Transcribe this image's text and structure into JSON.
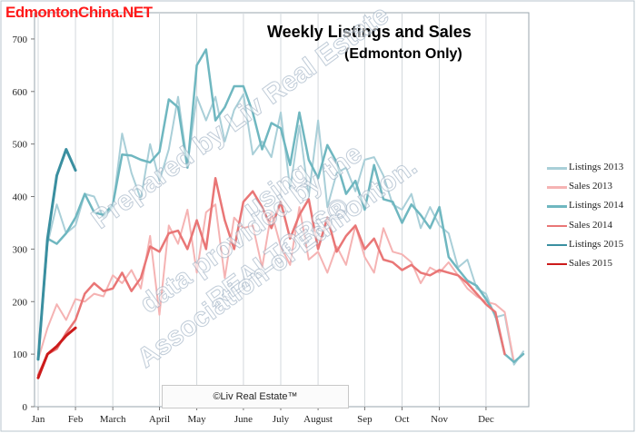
{
  "watermark_site": "EdmontonChina.NET",
  "watermark_lines": [
    "Prepared by Liv Real Estate",
    "using",
    "data provided by the",
    "REALTORS®",
    "Association of Edmonton."
  ],
  "copyright": "©Liv Real Estate™",
  "chart_data": {
    "type": "line",
    "title": "Weekly Listings and Sales",
    "subtitle": "(Edmonton Only)",
    "xlabel": "",
    "ylabel": "",
    "ylim": [
      0,
      750
    ],
    "yticks": [
      0,
      100,
      200,
      300,
      400,
      500,
      600,
      700
    ],
    "x_unit": "week of year",
    "xlim": [
      1,
      53
    ],
    "xticks": [
      {
        "label": "Jan",
        "week": 1
      },
      {
        "label": "Feb",
        "week": 5
      },
      {
        "label": "March",
        "week": 9
      },
      {
        "label": "April",
        "week": 14
      },
      {
        "label": "May",
        "week": 18
      },
      {
        "label": "June",
        "week": 23
      },
      {
        "label": "July",
        "week": 27
      },
      {
        "label": "August",
        "week": 31
      },
      {
        "label": "Sep",
        "week": 36
      },
      {
        "label": "Oct",
        "week": 40
      },
      {
        "label": "Nov",
        "week": 44
      },
      {
        "label": "Dec",
        "week": 49
      }
    ],
    "grid": "vertical",
    "legend_position": "right",
    "series": [
      {
        "name": "Listings 2013",
        "color": "#a9cfd8",
        "width": 2,
        "values": [
          95,
          310,
          385,
          330,
          345,
          405,
          400,
          360,
          380,
          520,
          445,
          395,
          500,
          430,
          490,
          590,
          460,
          590,
          545,
          590,
          505,
          565,
          595,
          480,
          505,
          475,
          560,
          415,
          535,
          400,
          545,
          380,
          445,
          455,
          410,
          470,
          475,
          440,
          385,
          375,
          405,
          340,
          380,
          345,
          330,
          265,
          280,
          225,
          215,
          170,
          175,
          80,
          105
        ]
      },
      {
        "name": "Sales 2013",
        "color": "#f5b3b3",
        "width": 2,
        "values": [
          90,
          150,
          195,
          165,
          205,
          200,
          215,
          210,
          250,
          235,
          260,
          225,
          325,
          175,
          345,
          310,
          375,
          255,
          370,
          385,
          245,
          360,
          340,
          345,
          265,
          370,
          305,
          270,
          380,
          280,
          295,
          255,
          305,
          270,
          345,
          285,
          255,
          340,
          295,
          290,
          275,
          235,
          265,
          255,
          275,
          250,
          225,
          210,
          200,
          195,
          180,
          85,
          100
        ]
      },
      {
        "name": "Listings 2014",
        "color": "#6fb7c0",
        "width": 2.5,
        "values": [
          90,
          320,
          310,
          330,
          360,
          405,
          370,
          365,
          385,
          480,
          478,
          470,
          465,
          485,
          585,
          570,
          455,
          650,
          680,
          545,
          570,
          610,
          610,
          560,
          490,
          540,
          530,
          460,
          560,
          470,
          435,
          498,
          465,
          405,
          430,
          375,
          460,
          395,
          390,
          350,
          385,
          365,
          340,
          380,
          285,
          262,
          240,
          230,
          205,
          175,
          100,
          85,
          100
        ]
      },
      {
        "name": "Sales 2014",
        "color": "#e97676",
        "width": 2.5,
        "values": [
          60,
          100,
          110,
          140,
          165,
          215,
          235,
          220,
          225,
          255,
          220,
          245,
          305,
          295,
          330,
          335,
          300,
          355,
          300,
          435,
          355,
          300,
          390,
          410,
          380,
          340,
          390,
          320,
          365,
          395,
          300,
          360,
          295,
          325,
          345,
          300,
          320,
          280,
          275,
          260,
          270,
          255,
          250,
          260,
          255,
          250,
          235,
          215,
          195,
          180,
          100
        ]
      },
      {
        "name": "Listings 2015",
        "color": "#3a8fa0",
        "width": 3,
        "values": [
          90,
          320,
          440,
          490,
          450
        ]
      },
      {
        "name": "Sales 2015",
        "color": "#cc1b1b",
        "width": 3,
        "values": [
          55,
          100,
          115,
          135,
          150
        ]
      }
    ]
  }
}
